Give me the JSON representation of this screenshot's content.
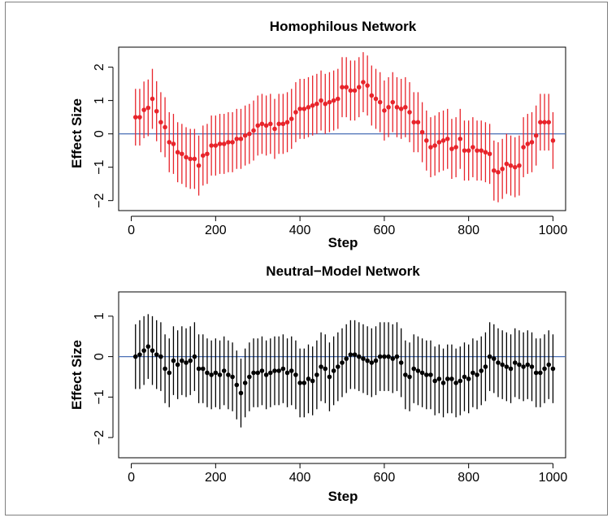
{
  "chart_data": [
    {
      "type": "scatter",
      "title": "Homophilous Network",
      "xlabel": "Step",
      "ylabel": "Effect Size",
      "xlim": [
        -30,
        1030
      ],
      "ylim": [
        -2.3,
        2.6
      ],
      "xticks": [
        "0",
        "200",
        "400",
        "600",
        "800",
        "1000"
      ],
      "yticks": [
        "-2",
        "-1",
        "0",
        "1",
        "2"
      ],
      "reference_line": 0,
      "colors": {
        "points": "#e8242b",
        "bars": "#e8242b",
        "reference": "#4a6fb5"
      },
      "series": [
        {
          "x": [
            10,
            20,
            30,
            40,
            50,
            60,
            70,
            80,
            90,
            100,
            110,
            120,
            130,
            140,
            150,
            160,
            170,
            180,
            190,
            200,
            210,
            220,
            230,
            240,
            250,
            260,
            270,
            280,
            290,
            300,
            310,
            320,
            330,
            340,
            350,
            360,
            370,
            380,
            390,
            400,
            410,
            420,
            430,
            440,
            450,
            460,
            470,
            480,
            490,
            500,
            510,
            520,
            530,
            540,
            550,
            560,
            570,
            580,
            590,
            600,
            610,
            620,
            630,
            640,
            650,
            660,
            670,
            680,
            690,
            700,
            710,
            720,
            730,
            740,
            750,
            760,
            770,
            780,
            790,
            800,
            810,
            820,
            830,
            840,
            850,
            860,
            870,
            880,
            890,
            900,
            910,
            920,
            930,
            940,
            950,
            960,
            970,
            980,
            990,
            1000
          ],
          "y": [
            0.5,
            0.5,
            0.72,
            0.78,
            1.05,
            0.68,
            0.35,
            0.2,
            -0.25,
            -0.3,
            -0.55,
            -0.6,
            -0.7,
            -0.75,
            -0.75,
            -0.95,
            -0.65,
            -0.6,
            -0.35,
            -0.35,
            -0.3,
            -0.3,
            -0.25,
            -0.25,
            -0.15,
            -0.15,
            -0.05,
            0.0,
            0.1,
            0.25,
            0.3,
            0.25,
            0.3,
            0.15,
            0.3,
            0.3,
            0.35,
            0.45,
            0.65,
            0.75,
            0.75,
            0.8,
            0.85,
            0.9,
            1.0,
            0.9,
            0.95,
            1.0,
            1.05,
            1.4,
            1.4,
            1.3,
            1.3,
            1.4,
            1.55,
            1.45,
            1.15,
            1.05,
            0.95,
            0.7,
            0.8,
            0.95,
            0.8,
            0.75,
            0.8,
            0.65,
            0.35,
            0.35,
            0.05,
            -0.2,
            -0.4,
            -0.35,
            -0.25,
            -0.2,
            -0.15,
            -0.45,
            -0.4,
            -0.15,
            -0.5,
            -0.5,
            -0.4,
            -0.5,
            -0.5,
            -0.55,
            -0.6,
            -1.1,
            -1.15,
            -1.05,
            -0.9,
            -0.95,
            -1.0,
            -0.95,
            -0.4,
            -0.3,
            -0.25,
            -0.05,
            0.35,
            0.35,
            0.35,
            -0.2
          ],
          "err": [
            0.85,
            0.85,
            0.85,
            0.85,
            0.9,
            0.9,
            0.9,
            0.9,
            0.9,
            0.9,
            0.9,
            0.9,
            0.9,
            0.9,
            0.9,
            0.9,
            0.9,
            0.9,
            0.9,
            0.9,
            0.9,
            0.9,
            0.9,
            0.9,
            0.9,
            0.9,
            0.9,
            0.9,
            0.9,
            0.9,
            0.9,
            0.9,
            0.9,
            0.9,
            0.9,
            0.9,
            0.9,
            0.9,
            0.9,
            0.9,
            0.9,
            0.9,
            0.9,
            0.9,
            0.9,
            0.9,
            0.9,
            0.9,
            0.9,
            0.9,
            0.9,
            0.9,
            0.9,
            0.9,
            0.9,
            0.9,
            0.9,
            0.9,
            0.9,
            0.9,
            0.9,
            0.9,
            0.9,
            0.9,
            0.9,
            0.9,
            0.9,
            0.9,
            0.9,
            0.9,
            0.9,
            0.9,
            0.9,
            0.9,
            0.9,
            0.9,
            0.9,
            0.9,
            0.9,
            0.9,
            0.9,
            0.9,
            0.9,
            0.9,
            0.9,
            0.9,
            0.9,
            0.9,
            0.9,
            0.9,
            0.9,
            0.9,
            0.9,
            0.9,
            0.9,
            0.9,
            0.85,
            0.85,
            0.85,
            0.85
          ]
        }
      ]
    },
    {
      "type": "scatter",
      "title": "Neutral−Model Network",
      "xlabel": "Step",
      "ylabel": "Effect Size",
      "xlim": [
        -30,
        1030
      ],
      "ylim": [
        -2.5,
        1.6
      ],
      "xticks": [
        "0",
        "200",
        "400",
        "600",
        "800",
        "1000"
      ],
      "yticks": [
        "-2",
        "-1",
        "0",
        "1"
      ],
      "reference_line": 0,
      "colors": {
        "points": "#000000",
        "bars": "#000000",
        "reference": "#4a6fb5"
      },
      "series": [
        {
          "x": [
            10,
            20,
            30,
            40,
            50,
            60,
            70,
            80,
            90,
            100,
            110,
            120,
            130,
            140,
            150,
            160,
            170,
            180,
            190,
            200,
            210,
            220,
            230,
            240,
            250,
            260,
            270,
            280,
            290,
            300,
            310,
            320,
            330,
            340,
            350,
            360,
            370,
            380,
            390,
            400,
            410,
            420,
            430,
            440,
            450,
            460,
            470,
            480,
            490,
            500,
            510,
            520,
            530,
            540,
            550,
            560,
            570,
            580,
            590,
            600,
            610,
            620,
            630,
            640,
            650,
            660,
            670,
            680,
            690,
            700,
            710,
            720,
            730,
            740,
            750,
            760,
            770,
            780,
            790,
            800,
            810,
            820,
            830,
            840,
            850,
            860,
            870,
            880,
            890,
            900,
            910,
            920,
            930,
            940,
            950,
            960,
            970,
            980,
            990,
            1000
          ],
          "y": [
            0.0,
            0.05,
            0.15,
            0.25,
            0.15,
            0.05,
            0.0,
            -0.3,
            -0.4,
            -0.1,
            -0.2,
            -0.1,
            -0.15,
            -0.1,
            0.0,
            -0.3,
            -0.3,
            -0.4,
            -0.45,
            -0.4,
            -0.45,
            -0.35,
            -0.45,
            -0.5,
            -0.7,
            -0.9,
            -0.65,
            -0.5,
            -0.4,
            -0.4,
            -0.35,
            -0.45,
            -0.4,
            -0.35,
            -0.35,
            -0.3,
            -0.4,
            -0.35,
            -0.45,
            -0.65,
            -0.65,
            -0.55,
            -0.6,
            -0.45,
            -0.25,
            -0.3,
            -0.5,
            -0.35,
            -0.25,
            -0.15,
            -0.05,
            0.05,
            0.05,
            0.0,
            -0.05,
            -0.1,
            -0.15,
            -0.1,
            0.0,
            0.0,
            0.0,
            -0.05,
            0.0,
            -0.15,
            -0.45,
            -0.5,
            -0.3,
            -0.35,
            -0.4,
            -0.45,
            -0.45,
            -0.6,
            -0.55,
            -0.65,
            -0.55,
            -0.55,
            -0.65,
            -0.6,
            -0.5,
            -0.55,
            -0.4,
            -0.45,
            -0.35,
            -0.25,
            0.0,
            -0.05,
            -0.15,
            -0.2,
            -0.25,
            -0.3,
            -0.15,
            -0.2,
            -0.25,
            -0.2,
            -0.25,
            -0.4,
            -0.4,
            -0.3,
            -0.2,
            -0.3
          ],
          "err": [
            0.8,
            0.85,
            0.85,
            0.8,
            0.85,
            0.85,
            0.85,
            0.85,
            0.85,
            0.85,
            0.85,
            0.85,
            0.85,
            0.85,
            0.85,
            0.85,
            0.85,
            0.85,
            0.85,
            0.85,
            0.85,
            0.85,
            0.85,
            0.85,
            0.85,
            0.85,
            0.85,
            0.85,
            0.85,
            0.85,
            0.85,
            0.85,
            0.85,
            0.85,
            0.85,
            0.85,
            0.85,
            0.85,
            0.85,
            0.85,
            0.85,
            0.85,
            0.85,
            0.85,
            0.85,
            0.85,
            0.85,
            0.85,
            0.85,
            0.85,
            0.85,
            0.85,
            0.85,
            0.85,
            0.85,
            0.85,
            0.85,
            0.85,
            0.85,
            0.85,
            0.85,
            0.85,
            0.85,
            0.85,
            0.85,
            0.85,
            0.85,
            0.85,
            0.85,
            0.85,
            0.85,
            0.85,
            0.85,
            0.85,
            0.85,
            0.85,
            0.85,
            0.85,
            0.85,
            0.85,
            0.85,
            0.85,
            0.85,
            0.85,
            0.85,
            0.85,
            0.85,
            0.85,
            0.85,
            0.85,
            0.85,
            0.85,
            0.85,
            0.85,
            0.85,
            0.85,
            0.85,
            0.85,
            0.85,
            0.85
          ]
        }
      ]
    }
  ]
}
